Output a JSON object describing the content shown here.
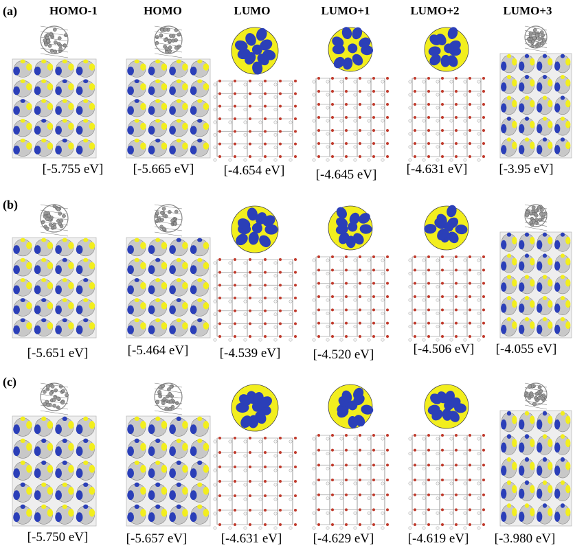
{
  "columns": [
    "HOMO-1",
    "HOMO",
    "LUMO",
    "LUMO+1",
    "LUMO+2",
    "LUMO+3"
  ],
  "panels": [
    {
      "label": "(a)",
      "energies": [
        "[-5.755 eV]",
        "[-5.665 eV]",
        "[-4.654 eV]",
        "[-4.645 eV]",
        "[-4.631 eV]",
        "[-3.95 eV]"
      ]
    },
    {
      "label": "(b)",
      "energies": [
        "[-5.651 eV]",
        "[-5.464 eV]",
        "[-4.539 eV]",
        "[-4.520 eV]",
        "[-4.506 eV]",
        "[-4.055 eV]"
      ]
    },
    {
      "label": "(c)",
      "energies": [
        "[-5.750 eV]",
        "[-5.657 eV]",
        "[-4.631 eV]",
        "[-4.629 eV]",
        "[-4.619 eV]",
        "[-3.980 eV]"
      ]
    }
  ],
  "colors": {
    "lobe_blue": "#2b3fb8",
    "lobe_yellow": "#f2ee1e",
    "surface_gray": "#c8c8c8",
    "atom_gray": "#9a9a9a",
    "atom_red": "#c0392b",
    "atom_white": "#f4f4f4"
  }
}
